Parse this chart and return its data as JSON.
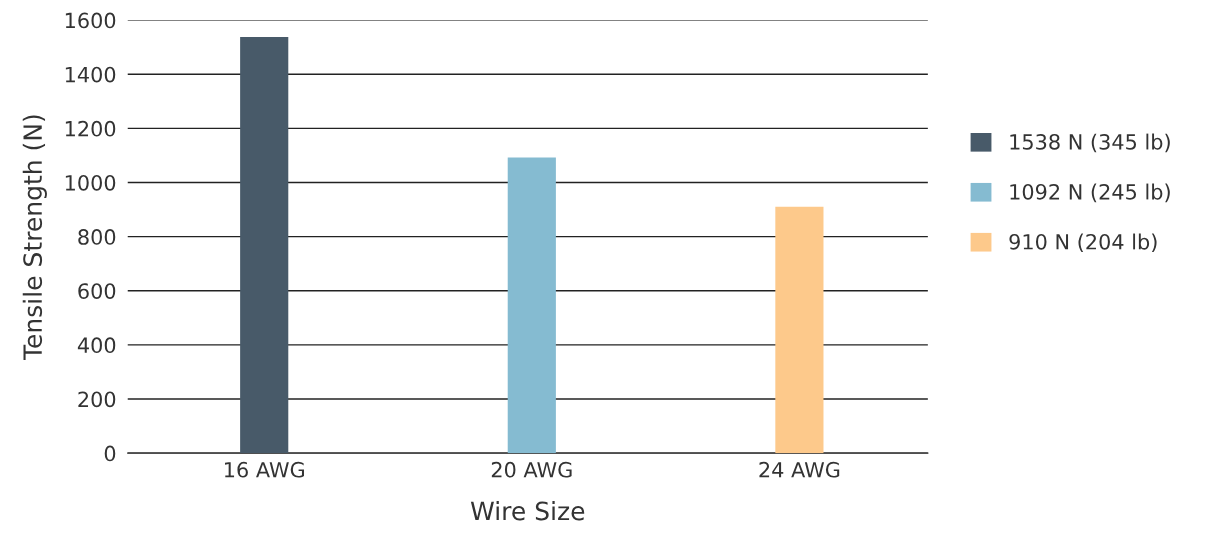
{
  "chart_data": {
    "type": "bar",
    "xlabel": "Wire Size",
    "ylabel": "Tensile Strength (N)",
    "categories": [
      "16 AWG",
      "20 AWG",
      "24 AWG"
    ],
    "series": [
      {
        "name": "1538 N (345 lb)",
        "color": "#485a69",
        "values": [
          1538,
          null,
          null
        ]
      },
      {
        "name": "1092 N (245 lb)",
        "color": "#85bbd1",
        "values": [
          null,
          1092,
          null
        ]
      },
      {
        "name": "910 N (204 lb)",
        "color": "#fdc98b",
        "values": [
          null,
          null,
          910
        ]
      }
    ],
    "ylim": [
      0,
      1600
    ],
    "yticks": [
      0,
      200,
      400,
      600,
      800,
      1000,
      1200,
      1400,
      1600
    ],
    "grid": "y",
    "legend": "right"
  }
}
